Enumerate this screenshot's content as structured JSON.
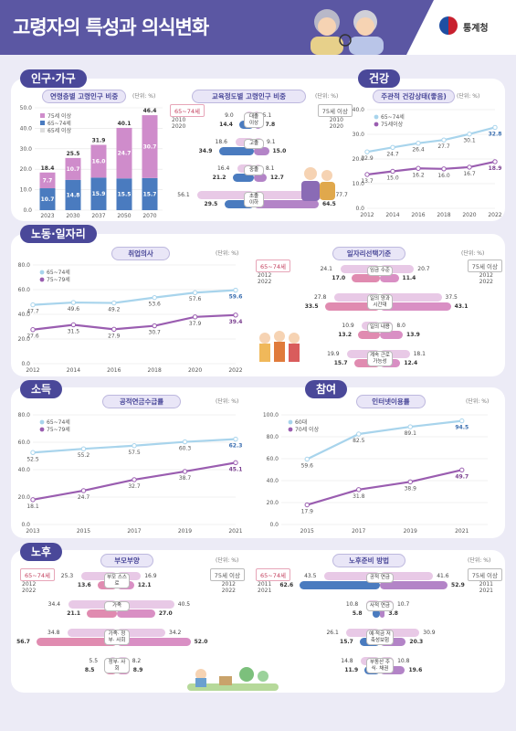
{
  "header": {
    "title": "고령자의 특성과 의식변화",
    "org": "통계청"
  },
  "sections": {
    "population": "인구·가구",
    "health": "건강",
    "labor": "노동·일자리",
    "income": "소득",
    "participation": "참여",
    "oldage": "노후"
  },
  "colors": {
    "pink": "#cf8ccb",
    "purple": "#b384c7",
    "blue": "#4a7bbf",
    "lightblue": "#a8d4ec",
    "darkpurple": "#9a5db0"
  },
  "pop_ratio": {
    "subtitle": "연령층별 고령인구 비중",
    "unit": "(단위: %)",
    "legend": [
      "75세 이상",
      "65~74세",
      "65세 이상"
    ],
    "chart_data": {
      "type": "bar",
      "categories": [
        "2023",
        "2030",
        "2037",
        "2050",
        "2070"
      ],
      "series": [
        {
          "name": "65~74세",
          "values": [
            10.7,
            14.8,
            15.9,
            15.5,
            15.7
          ]
        },
        {
          "name": "75세 이상",
          "values": [
            7.7,
            10.7,
            16.0,
            24.7,
            30.7
          ]
        },
        {
          "name": "65세 이상",
          "values": [
            18.4,
            25.5,
            31.9,
            40.1,
            46.4
          ]
        }
      ],
      "ylim": [
        0,
        50
      ],
      "yticks": [
        "0.0",
        "10.0",
        "20.0",
        "30.0",
        "40.0",
        "50.0"
      ]
    }
  },
  "edu": {
    "subtitle": "교육정도별 고령인구 비중",
    "unit": "(단위: %)",
    "left_tag": "65~74세",
    "right_tag": "75세 이상",
    "legend": [
      "2010",
      "2020"
    ],
    "rows": [
      {
        "label": "대졸 이상",
        "l2010": "9.0",
        "l2020": "14.4",
        "r2010": "5.1",
        "r2020": "7.8",
        "lv": [
          9.0,
          14.4
        ],
        "rv": [
          5.1,
          7.8
        ]
      },
      {
        "label": "고졸",
        "l2010": "18.6",
        "l2020": "34.9",
        "r2010": "9.1",
        "r2020": "15.0",
        "lv": [
          18.6,
          34.9
        ],
        "rv": [
          9.1,
          15.0
        ]
      },
      {
        "label": "중졸",
        "l2010": "16.4",
        "l2020": "21.2",
        "r2010": "8.1",
        "r2020": "12.7",
        "lv": [
          16.4,
          21.2
        ],
        "rv": [
          8.1,
          12.7
        ]
      },
      {
        "label": "초졸 이하",
        "l2010": "56.1",
        "l2020": "29.5",
        "r2010": "77.7",
        "r2020": "64.5",
        "lv": [
          56.1,
          29.5
        ],
        "rv": [
          77.7,
          64.5
        ]
      }
    ]
  },
  "health_chart": {
    "subtitle": "주관적 건강상태(좋음)",
    "unit": "(단위: %)",
    "legend": [
      "65~74세",
      "75세이상"
    ],
    "chart_data": {
      "type": "line",
      "x": [
        "2012",
        "2014",
        "2016",
        "2018",
        "2020",
        "2022"
      ],
      "series": [
        {
          "name": "65~74세",
          "values": [
            22.9,
            24.7,
            26.4,
            27.7,
            30.1,
            32.8
          ]
        },
        {
          "name": "75세이상",
          "values": [
            13.7,
            15.0,
            16.2,
            16.0,
            16.7,
            18.9
          ]
        }
      ],
      "ylim": [
        0,
        40
      ],
      "yticks": [
        "0.0",
        "10.0",
        "20.0",
        "30.0",
        "40.0"
      ]
    }
  },
  "employ": {
    "subtitle": "취업의사",
    "unit": "(단위: %)",
    "legend": [
      "65~74세",
      "75~79세"
    ],
    "chart_data": {
      "type": "line",
      "x": [
        "2012",
        "2014",
        "2016",
        "2018",
        "2020",
        "2022"
      ],
      "series": [
        {
          "name": "65~74세",
          "values": [
            47.7,
            49.6,
            49.2,
            53.6,
            57.6,
            59.6
          ]
        },
        {
          "name": "75~79세",
          "values": [
            27.6,
            31.5,
            27.9,
            30.7,
            37.9,
            39.4
          ]
        }
      ],
      "ylim": [
        0,
        80
      ],
      "yticks": [
        "0.0",
        "20.0",
        "40.0",
        "60.0",
        "80.0"
      ]
    }
  },
  "jobcrit": {
    "subtitle": "일자리선택기준",
    "unit": "(단위: %)",
    "left_tag": "65~74세",
    "right_tag": "75세 이상",
    "legend": [
      "2012",
      "2022"
    ],
    "rows": [
      {
        "label": "임금 수준",
        "l2012": "24.1",
        "l2022": "17.0",
        "r2012": "20.7",
        "r2022": "11.4",
        "lv": [
          24.1,
          17.0
        ],
        "rv": [
          20.7,
          11.4
        ]
      },
      {
        "label": "일의 양과 시간대",
        "l2012": "27.8",
        "l2022": "33.5",
        "r2012": "37.5",
        "r2022": "43.1",
        "lv": [
          27.8,
          33.5
        ],
        "rv": [
          37.5,
          43.1
        ]
      },
      {
        "label": "일의 내용",
        "l2012": "10.9",
        "l2022": "13.2",
        "r2012": "8.0",
        "r2022": "13.9",
        "lv": [
          10.9,
          13.2
        ],
        "rv": [
          8.0,
          13.9
        ]
      },
      {
        "label": "계속 근로 가능성",
        "l2012": "19.9",
        "l2022": "15.7",
        "r2012": "18.1",
        "r2022": "12.4",
        "lv": [
          19.9,
          15.7
        ],
        "rv": [
          18.1,
          12.4
        ]
      }
    ]
  },
  "pension": {
    "subtitle": "공적연금수급률",
    "unit": "(단위: %)",
    "legend": [
      "65~74세",
      "75~79세"
    ],
    "chart_data": {
      "type": "line",
      "x": [
        "2013",
        "2015",
        "2017",
        "2019",
        "2021"
      ],
      "series": [
        {
          "name": "65~74세",
          "values": [
            52.5,
            55.2,
            57.5,
            60.3,
            62.3
          ]
        },
        {
          "name": "75~79세",
          "values": [
            18.1,
            24.7,
            32.7,
            38.7,
            45.1
          ]
        }
      ],
      "ylim": [
        0,
        80
      ],
      "yticks": [
        "0.0",
        "20.0",
        "40.0",
        "60.0",
        "80.0"
      ]
    }
  },
  "internet": {
    "subtitle": "인터넷이용률",
    "unit": "(단위: %)",
    "legend": [
      "60대",
      "70세 이상"
    ],
    "chart_data": {
      "type": "line",
      "x": [
        "2015",
        "2017",
        "2019",
        "2021"
      ],
      "series": [
        {
          "name": "60대",
          "values": [
            59.6,
            82.5,
            89.1,
            94.5
          ]
        },
        {
          "name": "70세 이상",
          "values": [
            17.9,
            31.8,
            38.9,
            49.7
          ]
        }
      ],
      "ylim": [
        0,
        100
      ],
      "yticks": [
        "0.0",
        "20.0",
        "40.0",
        "60.0",
        "80.0",
        "100.0"
      ]
    }
  },
  "support": {
    "subtitle": "부모부양",
    "unit": "(단위: %)",
    "left_tag": "65~74세",
    "right_tag": "75세 이상",
    "legend": [
      "2012",
      "2022"
    ],
    "rows": [
      {
        "label": "부모 스스로",
        "l2012": "25.3",
        "l2022": "13.6",
        "r2012": "16.9",
        "r2022": "12.1",
        "lv": [
          25.3,
          13.6
        ],
        "rv": [
          16.9,
          12.1
        ]
      },
      {
        "label": "가족",
        "l2012": "34.4",
        "l2022": "21.1",
        "r2012": "40.5",
        "r2022": "27.0",
        "lv": [
          34.4,
          21.1
        ],
        "rv": [
          40.5,
          27.0
        ]
      },
      {
        "label": "가족· 정부· 사회",
        "l2012": "34.8",
        "l2022": "56.7",
        "r2012": "34.2",
        "r2022": "52.0",
        "lv": [
          34.8,
          56.7
        ],
        "rv": [
          34.2,
          52.0
        ]
      },
      {
        "label": "정부· 사회",
        "l2012": "5.5",
        "l2022": "8.5",
        "r2012": "8.2",
        "r2022": "8.9",
        "lv": [
          5.5,
          8.5
        ],
        "rv": [
          8.2,
          8.9
        ]
      }
    ]
  },
  "prep": {
    "subtitle": "노후준비 방법",
    "unit": "(단위: %)",
    "left_tag": "65~74세",
    "right_tag": "75세 이상",
    "legend": [
      "2011",
      "2021"
    ],
    "rows": [
      {
        "label": "공적 연금",
        "l2011": "43.5",
        "l2021": "62.6",
        "r2011": "41.6",
        "r2021": "52.9",
        "lv": [
          43.5,
          62.6
        ],
        "rv": [
          41.6,
          52.9
        ]
      },
      {
        "label": "사적 연금",
        "l2011": "10.8",
        "l2021": "5.8",
        "r2011": "10.7",
        "r2021": "3.8",
        "lv": [
          10.8,
          5.8
        ],
        "rv": [
          10.7,
          3.8
        ]
      },
      {
        "label": "예·적금 저축성보험",
        "l2011": "26.1",
        "l2021": "15.7",
        "r2011": "30.9",
        "r2021": "20.3",
        "lv": [
          26.1,
          15.7
        ],
        "rv": [
          30.9,
          20.3
        ]
      },
      {
        "label": "부동산 주식· 채권",
        "l2011": "14.8",
        "l2021": "11.9",
        "r2011": "10.8",
        "r2021": "19.6",
        "lv": [
          14.8,
          11.9
        ],
        "rv": [
          10.8,
          19.6
        ]
      }
    ]
  }
}
